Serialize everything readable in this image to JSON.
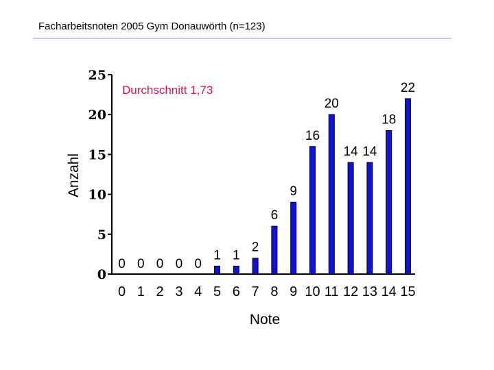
{
  "title": "Facharbeitsnoten 2005 Gym Donauwörth (n=123)",
  "chart_data": {
    "type": "bar",
    "categories": [
      "0",
      "1",
      "2",
      "3",
      "4",
      "5",
      "6",
      "7",
      "8",
      "9",
      "10",
      "11",
      "12",
      "13",
      "14",
      "15"
    ],
    "values": [
      0,
      0,
      0,
      0,
      0,
      1,
      1,
      2,
      6,
      9,
      16,
      20,
      14,
      14,
      18,
      22
    ],
    "xlabel": "Note",
    "ylabel": "Anzahl",
    "ylim": [
      0,
      25
    ],
    "yticks": [
      0,
      5,
      10,
      15,
      20,
      25
    ],
    "annotation": "Durchschnitt 1,73",
    "bar_color": "#1111dd",
    "grid": false,
    "legend": "none"
  }
}
